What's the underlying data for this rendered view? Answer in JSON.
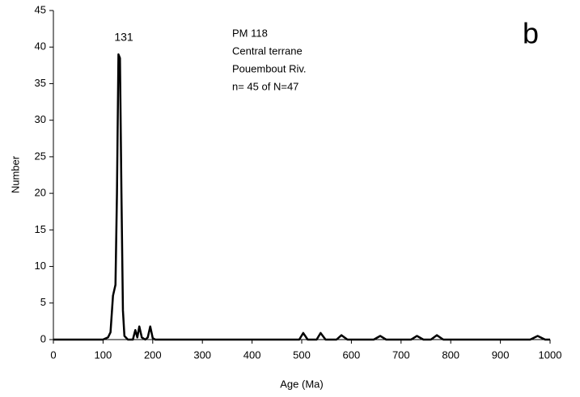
{
  "chart_data": {
    "type": "line",
    "x_label": "Age (Ma)",
    "y_label": "Number",
    "annotations": [
      "131",
      "PM 118",
      "Central terrane",
      "Pouembout Riv.",
      "n= 45 of N=47",
      "b"
    ],
    "x": [
      0,
      100,
      110,
      115,
      120,
      125,
      128,
      131,
      134,
      137,
      140,
      143,
      150,
      160,
      165,
      169,
      173,
      178,
      185,
      190,
      195,
      200,
      205,
      495,
      503,
      512,
      530,
      538,
      548,
      570,
      580,
      592,
      645,
      658,
      670,
      720,
      732,
      745,
      760,
      772,
      785,
      960,
      975,
      990,
      1000
    ],
    "series": [
      {
        "color": "#000000",
        "values": [
          0,
          0,
          0.3,
          1,
          6,
          7.5,
          20,
          39,
          38.5,
          20,
          4,
          0.5,
          0,
          0,
          1.3,
          0.3,
          1.8,
          0.3,
          0,
          0.3,
          1.8,
          0.2,
          0,
          0,
          0.9,
          0,
          0,
          0.9,
          0,
          0,
          0.6,
          0,
          0,
          0.5,
          0,
          0,
          0.5,
          0,
          0,
          0.6,
          0,
          0,
          0.5,
          0,
          0
        ]
      }
    ],
    "xlim": [
      0,
      1000
    ],
    "xticks": [
      0,
      100,
      200,
      300,
      400,
      500,
      600,
      700,
      800,
      900,
      1000
    ],
    "ylim": [
      0,
      45
    ],
    "yticks": [
      0,
      5,
      10,
      15,
      20,
      25,
      30,
      35,
      40,
      45
    ],
    "grid": false
  }
}
